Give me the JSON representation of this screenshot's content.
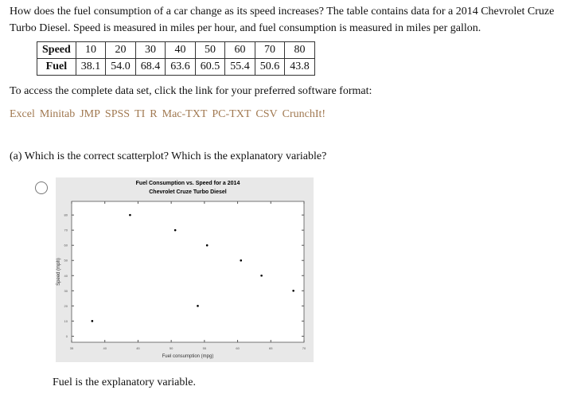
{
  "question": "How does the fuel consumption of a car change as its speed increases? The table contains data for a 2014 Chevrolet Cruze Turbo Diesel. Speed is measured in miles per hour, and fuel consumption is measured in miles per gallon.",
  "table": {
    "row_headers": [
      "Speed",
      "Fuel"
    ],
    "speed": [
      "10",
      "20",
      "30",
      "40",
      "50",
      "60",
      "70",
      "80"
    ],
    "fuel": [
      "38.1",
      "54.0",
      "68.4",
      "63.6",
      "60.5",
      "55.4",
      "50.6",
      "43.8"
    ]
  },
  "access_text": "To access the complete data set, click the link for your preferred software format:",
  "links": [
    "Excel",
    "Minitab",
    "JMP",
    "SPSS",
    "TI",
    "R",
    "Mac-TXT",
    "PC-TXT",
    "CSV",
    "CrunchIt!"
  ],
  "part_a": "(a) Which is the correct scatterplot? Which is the explanatory variable?",
  "option_label": "Fuel is the explanatory variable.",
  "chart_data": {
    "type": "scatter",
    "title": [
      "Fuel Consumption vs. Speed for a 2014",
      "Chevrolet Cruze Turbo Diesel"
    ],
    "xlabel": "Fuel consumption (mpg)",
    "ylabel": "Speed (mph)",
    "xlim": [
      35,
      70
    ],
    "ylim": [
      -4,
      89
    ],
    "xticks": [
      35,
      40,
      45,
      50,
      55,
      60,
      65,
      70
    ],
    "yticks": [
      0,
      10,
      20,
      30,
      40,
      50,
      60,
      70,
      80
    ],
    "points": [
      {
        "x": 38.1,
        "y": 10
      },
      {
        "x": 54.0,
        "y": 20
      },
      {
        "x": 68.4,
        "y": 30
      },
      {
        "x": 63.6,
        "y": 40
      },
      {
        "x": 60.5,
        "y": 50
      },
      {
        "x": 55.4,
        "y": 60
      },
      {
        "x": 50.6,
        "y": 70
      },
      {
        "x": 43.8,
        "y": 80
      }
    ]
  }
}
